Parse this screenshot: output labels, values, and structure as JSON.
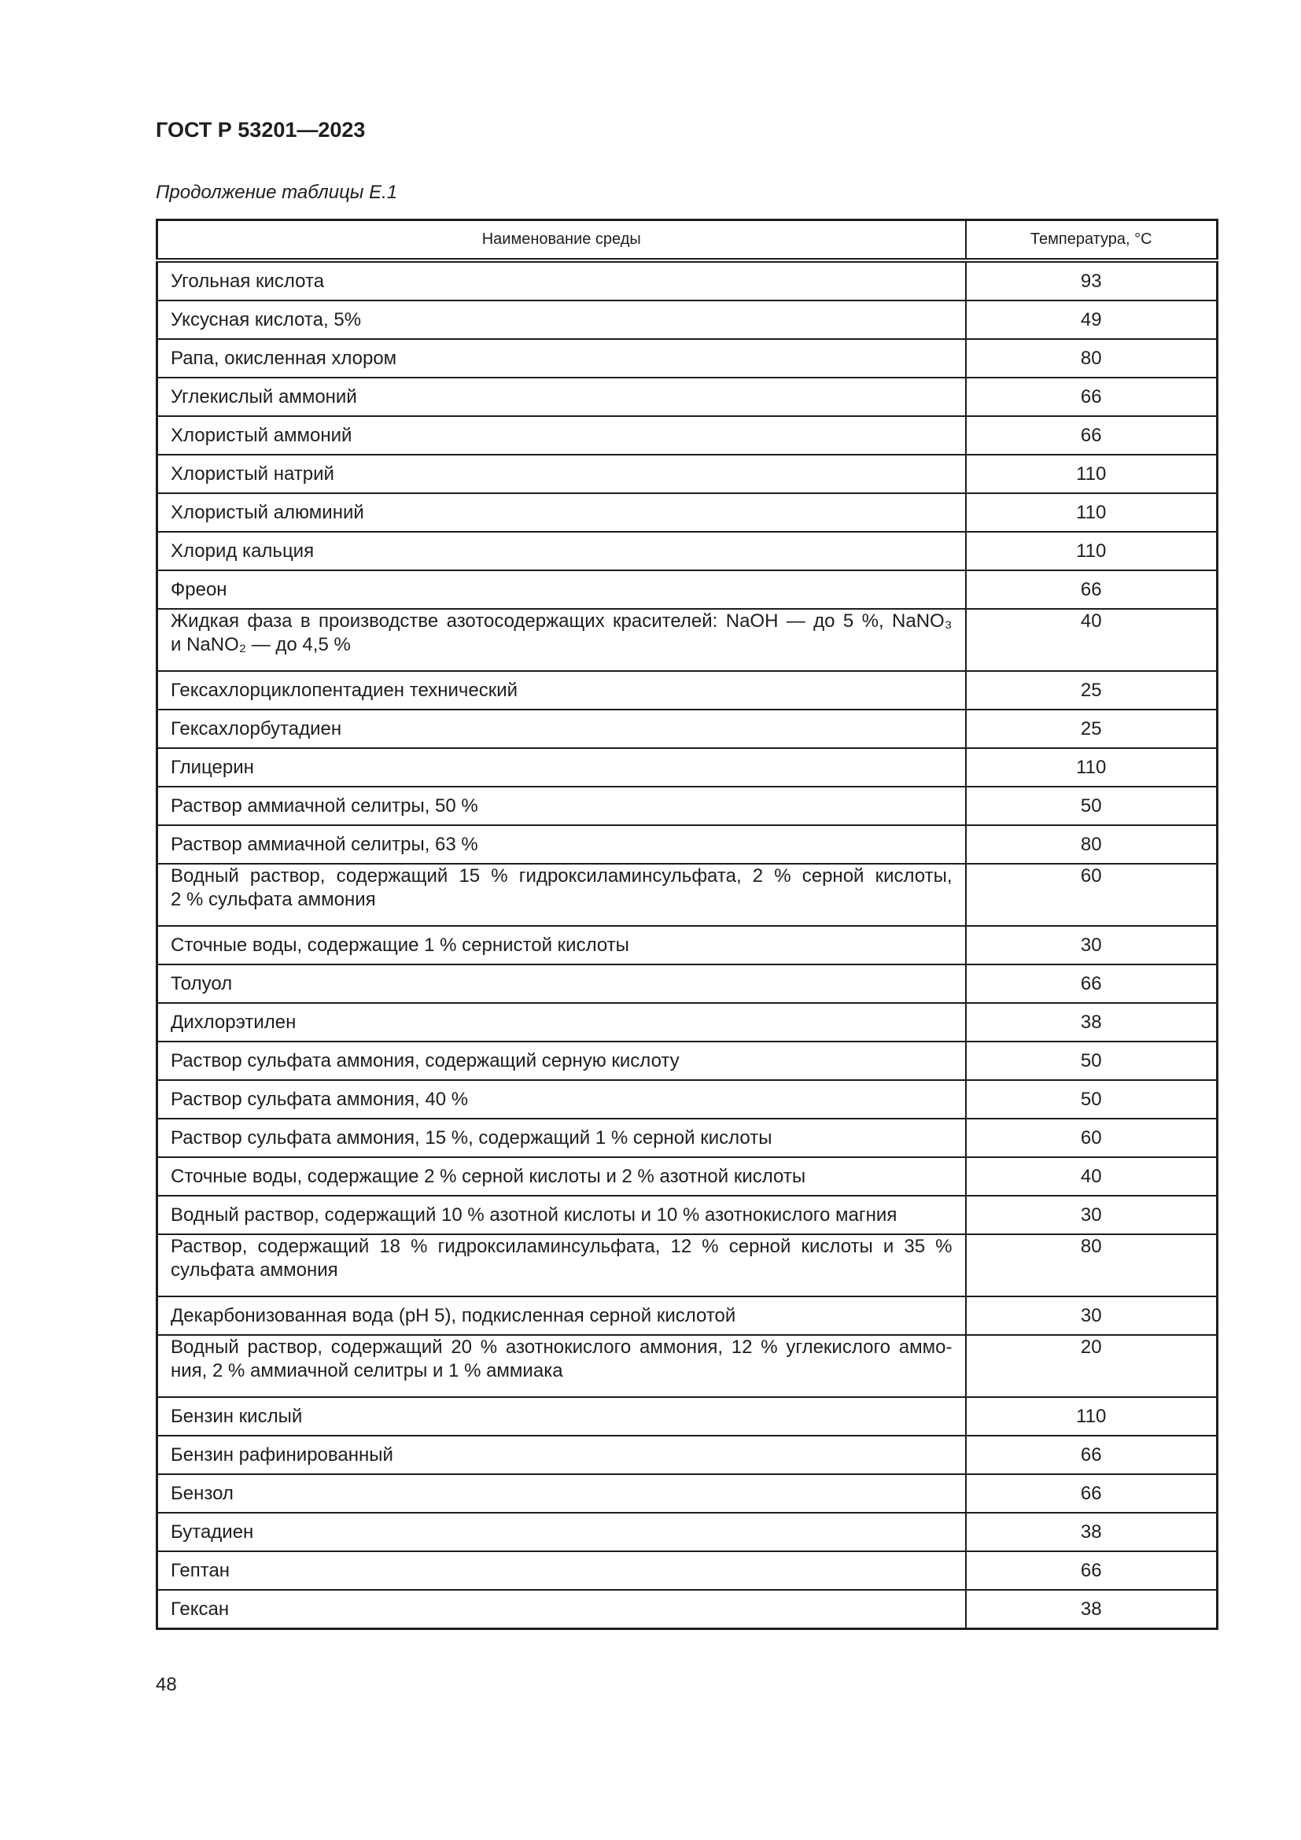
{
  "header": {
    "doc_title": "ГОСТ Р 53201—2023"
  },
  "table_caption": "Продолжение таблицы Е.1",
  "table": {
    "columns": [
      "Наименование среды",
      "Температура, °С"
    ],
    "rows": [
      {
        "name": [
          "Угольная кислота"
        ],
        "temp": "93"
      },
      {
        "name": [
          "Уксусная кислота, 5%"
        ],
        "temp": "49"
      },
      {
        "name": [
          "Рапа, окисленная хлором"
        ],
        "temp": "80"
      },
      {
        "name": [
          "Углекислый аммоний"
        ],
        "temp": "66"
      },
      {
        "name": [
          "Хлористый аммоний"
        ],
        "temp": "66"
      },
      {
        "name": [
          "Хлористый натрий"
        ],
        "temp": "110"
      },
      {
        "name": [
          "Хлористый алюминий"
        ],
        "temp": "110"
      },
      {
        "name": [
          "Хлорид кальция"
        ],
        "temp": "110"
      },
      {
        "name": [
          "Фреон"
        ],
        "temp": "66"
      },
      {
        "name": [
          "Жидкая фаза в производстве азотосодержащих красителей: NaOH — до 5 %, NaNO₃",
          "и NaNO₂ — до 4,5 %"
        ],
        "temp": "40"
      },
      {
        "name": [
          "Гексахлорциклопентадиен технический"
        ],
        "temp": "25"
      },
      {
        "name": [
          "Гексахлорбутадиен"
        ],
        "temp": "25"
      },
      {
        "name": [
          "Глицерин"
        ],
        "temp": "110"
      },
      {
        "name": [
          "Раствор аммиачной селитры, 50 %"
        ],
        "temp": "50"
      },
      {
        "name": [
          "Раствор аммиачной селитры, 63 %"
        ],
        "temp": "80"
      },
      {
        "name": [
          "Водный раствор, содержащий 15 % гидроксиламинсульфата, 2 % серной кислоты,",
          "2 % сульфата аммония"
        ],
        "temp": "60"
      },
      {
        "name": [
          "Сточные воды, содержащие 1 % сернистой кислоты"
        ],
        "temp": "30"
      },
      {
        "name": [
          "Толуол"
        ],
        "temp": "66"
      },
      {
        "name": [
          "Дихлорэтилен"
        ],
        "temp": "38"
      },
      {
        "name": [
          "Раствор сульфата аммония, содержащий серную кислоту"
        ],
        "temp": "50"
      },
      {
        "name": [
          "Раствор сульфата аммония, 40 %"
        ],
        "temp": "50"
      },
      {
        "name": [
          "Раствор сульфата аммония, 15 %, содержащий 1 % серной кислоты"
        ],
        "temp": "60"
      },
      {
        "name": [
          "Сточные воды, содержащие 2 % серной кислоты и 2 % азотной кислоты"
        ],
        "temp": "40"
      },
      {
        "name": [
          "Водный раствор, содержащий 10 % азотной кислоты и 10 % азотнокислого магния"
        ],
        "temp": "30"
      },
      {
        "name": [
          "Раствор, содержащий 18 % гидроксиламинсульфата, 12 % серной кислоты и 35 %",
          "сульфата аммония"
        ],
        "temp": "80"
      },
      {
        "name": [
          "Декарбонизованная вода (pH 5), подкисленная серной кислотой"
        ],
        "temp": "30"
      },
      {
        "name": [
          "Водный раствор, содержащий 20 % азотнокислого аммония, 12 % углекислого аммо-",
          "ния, 2 % аммиачной селитры и 1 % аммиака"
        ],
        "temp": "20"
      },
      {
        "name": [
          "Бензин кислый"
        ],
        "temp": "110"
      },
      {
        "name": [
          "Бензин рафинированный"
        ],
        "temp": "66"
      },
      {
        "name": [
          "Бензол"
        ],
        "temp": "66"
      },
      {
        "name": [
          "Бутадиен"
        ],
        "temp": "38"
      },
      {
        "name": [
          "Гептан"
        ],
        "temp": "66"
      },
      {
        "name": [
          "Гексан"
        ],
        "temp": "38"
      }
    ]
  },
  "footer": {
    "page_number": "48"
  }
}
